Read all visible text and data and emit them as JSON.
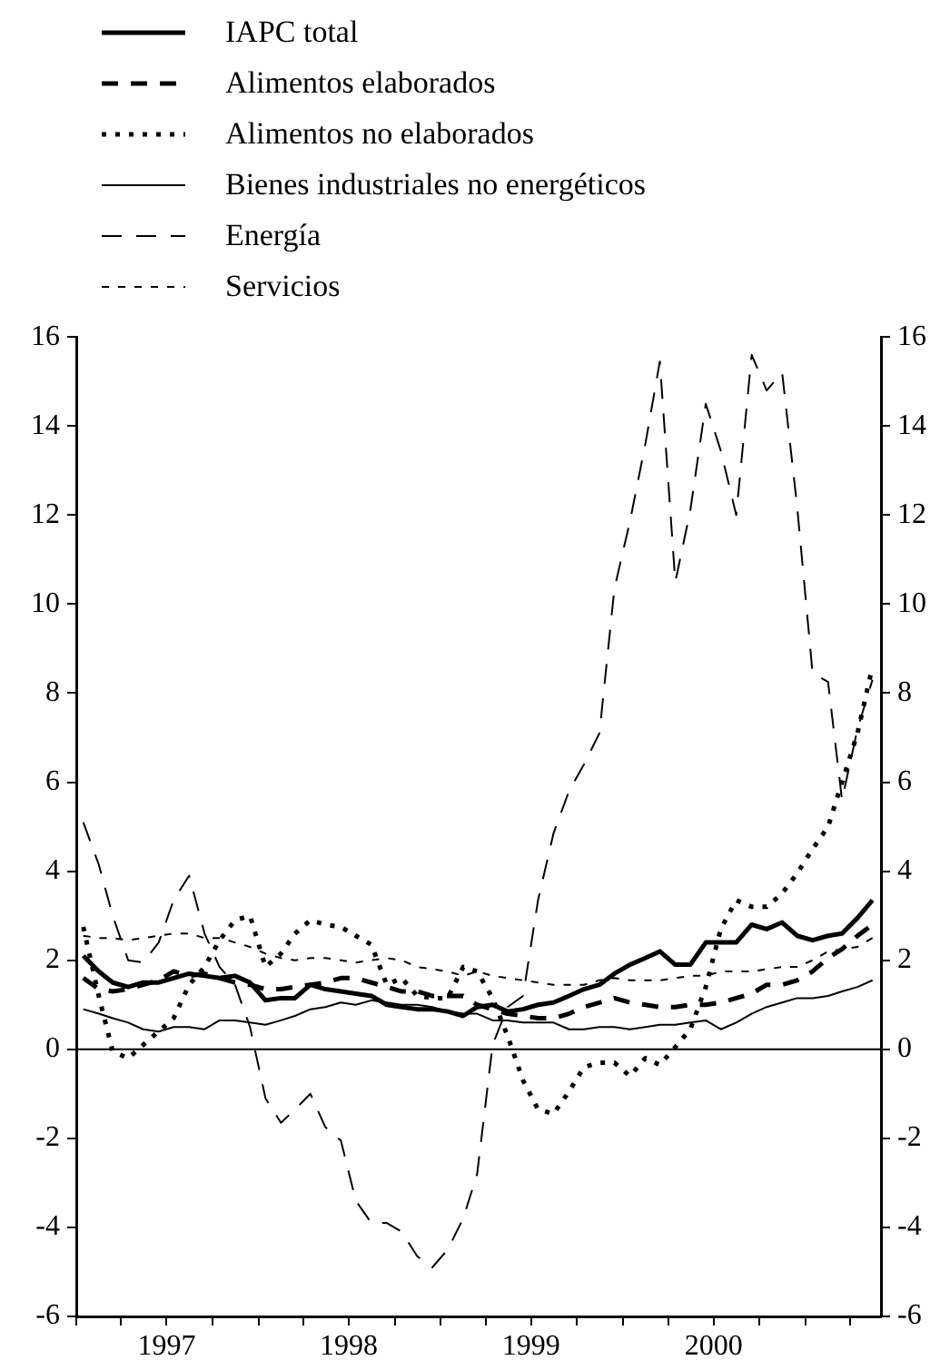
{
  "chart_data": {
    "type": "line",
    "legend": "top left",
    "grid": false,
    "x": [
      "1997-01-15",
      "1997-02-15",
      "1997-03-15",
      "1997-04-15",
      "1997-05-15",
      "1997-06-15",
      "1997-07-15",
      "1997-08-15",
      "1997-09-15",
      "1997-10-15",
      "1997-11-15",
      "1997-12-15",
      "1998-01-15",
      "1998-02-15",
      "1998-03-15",
      "1998-04-15",
      "1998-05-15",
      "1998-06-15",
      "1998-07-15",
      "1998-08-15",
      "1998-09-15",
      "1998-10-15",
      "1998-11-15",
      "1998-12-15",
      "1999-01-15",
      "1999-02-15",
      "1999-03-15",
      "1999-04-15",
      "1999-05-15",
      "1999-06-15",
      "1999-07-15",
      "1999-08-15",
      "1999-09-15",
      "1999-10-15",
      "1999-11-15",
      "1999-12-15",
      "2000-01-15",
      "2000-02-15",
      "2000-03-15",
      "2000-04-15",
      "2000-05-15",
      "2000-06-15",
      "2000-07-15",
      "2000-08-15",
      "2000-09-15",
      "2000-10-15",
      "2000-11-15",
      "2000-12-15",
      "2001-01-15",
      "2001-02-15",
      "2001-03-15",
      "2001-04-15",
      "2001-05-15"
    ],
    "series": [
      {
        "name": "IAPC total",
        "color": "#000000",
        "line_style": "solid",
        "values": [
          2.1,
          1.75,
          1.5,
          1.4,
          1.5,
          1.5,
          1.6,
          1.7,
          1.65,
          1.6,
          1.65,
          1.5,
          1.1,
          1.15,
          1.15,
          1.45,
          1.35,
          1.3,
          1.25,
          1.2,
          1.0,
          0.95,
          0.9,
          0.9,
          0.85,
          0.75,
          0.95,
          1.0,
          0.85,
          0.9,
          1.0,
          1.05,
          1.2,
          1.35,
          1.45,
          1.7,
          1.9,
          2.05,
          2.2,
          1.9,
          1.9,
          2.4,
          2.4,
          2.4,
          2.8,
          2.7,
          2.85,
          2.55,
          2.45,
          2.55,
          2.6,
          2.95,
          3.35
        ]
      },
      {
        "name": "Alimentos elaborados",
        "color": "#000000",
        "line_style": "dashed",
        "values": [
          1.6,
          1.35,
          1.3,
          1.35,
          1.45,
          1.55,
          1.75,
          1.65,
          1.7,
          1.6,
          1.5,
          1.45,
          1.35,
          1.35,
          1.4,
          1.45,
          1.5,
          1.6,
          1.6,
          1.5,
          1.4,
          1.3,
          1.3,
          1.2,
          1.2,
          1.2,
          1.0,
          0.9,
          0.8,
          0.75,
          0.7,
          0.7,
          0.8,
          0.95,
          1.05,
          1.15,
          1.05,
          1.0,
          0.95,
          0.95,
          1.0,
          1.0,
          1.05,
          1.15,
          1.25,
          1.45,
          1.45,
          1.55,
          1.75,
          2.05,
          2.25,
          2.55,
          2.8
        ]
      },
      {
        "name": "Alimentos no elaborados",
        "color": "#000000",
        "line_style": "dotted",
        "values": [
          2.75,
          1.2,
          -0.05,
          -0.2,
          0.1,
          0.4,
          0.7,
          1.45,
          1.85,
          2.45,
          2.9,
          3.0,
          1.85,
          2.15,
          2.6,
          2.9,
          2.8,
          2.75,
          2.55,
          2.35,
          1.45,
          1.6,
          1.2,
          1.15,
          1.15,
          1.85,
          1.75,
          1.15,
          0.3,
          -0.7,
          -1.35,
          -1.45,
          -0.95,
          -0.4,
          -0.3,
          -0.3,
          -0.6,
          -0.2,
          -0.35,
          0.05,
          0.45,
          1.4,
          2.7,
          3.35,
          3.2,
          3.2,
          3.5,
          3.95,
          4.5,
          5.0,
          6.0,
          7.1,
          8.6
        ]
      },
      {
        "name": "Bienes industriales no energéticos",
        "color": "#000000",
        "line_style": "solid",
        "values": [
          0.9,
          0.8,
          0.7,
          0.6,
          0.45,
          0.4,
          0.5,
          0.5,
          0.45,
          0.65,
          0.65,
          0.6,
          0.55,
          0.65,
          0.75,
          0.9,
          0.95,
          1.05,
          1.0,
          1.1,
          1.05,
          1.0,
          1.0,
          0.95,
          0.85,
          0.8,
          0.8,
          0.65,
          0.65,
          0.6,
          0.6,
          0.6,
          0.45,
          0.45,
          0.5,
          0.5,
          0.45,
          0.5,
          0.55,
          0.55,
          0.6,
          0.65,
          0.45,
          0.6,
          0.8,
          0.95,
          1.05,
          1.15,
          1.15,
          1.2,
          1.3,
          1.4,
          1.55
        ]
      },
      {
        "name": "Energía",
        "color": "#000000",
        "line_style": "dashed",
        "values": [
          5.1,
          4.15,
          3.0,
          2.0,
          1.95,
          2.4,
          3.35,
          3.9,
          2.6,
          1.85,
          1.45,
          0.5,
          -1.1,
          -1.65,
          -1.35,
          -1.0,
          -1.75,
          -2.05,
          -3.4,
          -3.9,
          -3.9,
          -4.1,
          -4.65,
          -4.9,
          -4.5,
          -3.8,
          -2.8,
          0.1,
          0.95,
          1.2,
          3.35,
          4.85,
          5.8,
          6.4,
          7.1,
          10.35,
          11.85,
          13.6,
          15.45,
          10.5,
          12.1,
          14.5,
          13.45,
          12.0,
          15.6,
          14.8,
          15.2,
          12.2,
          8.45,
          8.25,
          5.6,
          7.2,
          8.3
        ]
      },
      {
        "name": "Servicios",
        "color": "#000000",
        "line_style": "dashed",
        "values": [
          2.55,
          2.5,
          2.5,
          2.45,
          2.5,
          2.55,
          2.6,
          2.6,
          2.5,
          2.5,
          2.4,
          2.3,
          2.15,
          2.05,
          2.0,
          2.05,
          2.05,
          2.0,
          1.95,
          2.0,
          2.05,
          2.0,
          1.85,
          1.8,
          1.75,
          1.65,
          1.75,
          1.65,
          1.6,
          1.55,
          1.5,
          1.45,
          1.45,
          1.45,
          1.55,
          1.6,
          1.55,
          1.55,
          1.55,
          1.6,
          1.65,
          1.65,
          1.75,
          1.75,
          1.75,
          1.8,
          1.85,
          1.85,
          2.0,
          2.2,
          2.25,
          2.3,
          2.5
        ]
      }
    ],
    "xlim": [
      "1997-01-01",
      "2001-06-01"
    ],
    "xticks": [
      {
        "value": "1997-01-01",
        "label": null
      },
      {
        "value": "1997-04-01",
        "label": null
      },
      {
        "value": "1997-07-01",
        "label": "1997"
      },
      {
        "value": "1997-10-01",
        "label": null
      },
      {
        "value": "1998-01-01",
        "label": null
      },
      {
        "value": "1998-04-01",
        "label": null
      },
      {
        "value": "1998-07-01",
        "label": "1998"
      },
      {
        "value": "1998-10-01",
        "label": null
      },
      {
        "value": "1999-01-01",
        "label": null
      },
      {
        "value": "1999-04-01",
        "label": null
      },
      {
        "value": "1999-07-01",
        "label": "1999"
      },
      {
        "value": "1999-10-01",
        "label": null
      },
      {
        "value": "2000-01-01",
        "label": null
      },
      {
        "value": "2000-04-01",
        "label": null
      },
      {
        "value": "2000-07-01",
        "label": "2000"
      },
      {
        "value": "2000-10-01",
        "label": null
      },
      {
        "value": "2001-01-01",
        "label": null
      },
      {
        "value": "2001-04-01",
        "label": null
      }
    ],
    "ylim": [
      -6,
      16
    ],
    "yticks": [
      -6,
      -4,
      -2,
      0,
      2,
      4,
      6,
      8,
      10,
      12,
      14,
      16
    ],
    "y2lim": [
      -6,
      16
    ],
    "y2ticks": [
      -6,
      -4,
      -2,
      0,
      2,
      4,
      6,
      8,
      10,
      12,
      14,
      16
    ],
    "ref_lines": [
      {
        "axis": "y",
        "value": 0
      }
    ]
  }
}
